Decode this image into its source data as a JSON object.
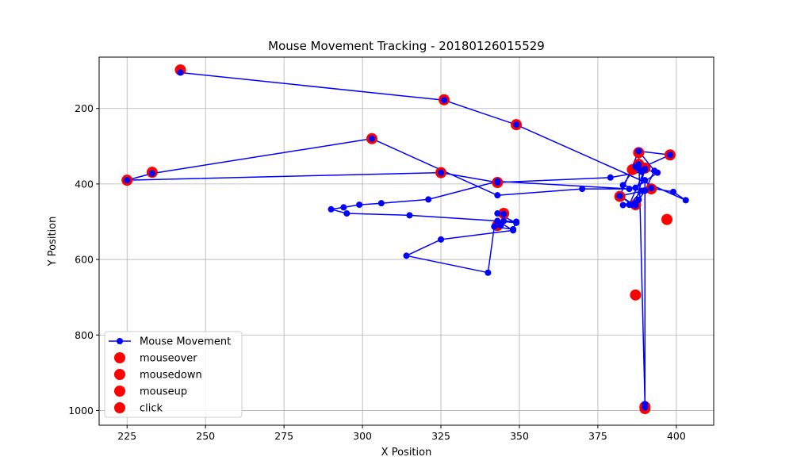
{
  "chart_data": {
    "type": "scatter",
    "title": "Mouse Movement Tracking - 20180126015529",
    "xlabel": "X Position",
    "ylabel": "Y Position",
    "xlim": [
      216.1,
      411.9
    ],
    "ylim": [
      1039,
      64
    ],
    "y_inverted": true,
    "grid": true,
    "x_ticks": [
      225,
      250,
      275,
      300,
      325,
      350,
      375,
      400
    ],
    "y_ticks": [
      200,
      400,
      600,
      800,
      1000
    ],
    "legend_position": "lower-left",
    "colors": {
      "line": "#0000ff",
      "events": "#ff0000",
      "grid": "#b0b0b0"
    },
    "legend": [
      {
        "label": "Mouse Movement",
        "kind": "line"
      },
      {
        "label": "mouseover",
        "kind": "event"
      },
      {
        "label": "mousedown",
        "kind": "event"
      },
      {
        "label": "mouseup",
        "kind": "event"
      },
      {
        "label": "click",
        "kind": "event"
      }
    ],
    "series": [
      {
        "name": "Mouse Movement",
        "x": [
          242,
          326,
          349,
          403,
          399,
          392,
          390,
          382,
          386,
          387,
          390,
          388,
          387,
          383,
          389,
          385,
          390,
          394,
          387,
          390,
          390,
          390,
          388,
          382,
          387,
          383,
          388,
          390,
          393,
          388,
          398,
          388,
          389,
          379,
          343,
          325,
          225,
          233,
          303,
          343,
          370,
          385,
          343,
          321,
          306,
          299,
          294,
          290,
          295,
          315,
          343,
          342,
          344,
          345,
          349,
          348,
          342,
          340,
          314,
          325,
          348,
          343,
          349,
          343,
          345
        ],
        "y": [
          105,
          178,
          243,
          443,
          421,
          411,
          417,
          432,
          455,
          450,
          360,
          348,
          354,
          403,
          418,
          455,
          362,
          370,
          410,
          390,
          992,
          983,
          313,
          432,
          457,
          456,
          442,
          418,
          365,
          313,
          323,
          360,
          368,
          383,
          396,
          370,
          390,
          372,
          280,
          430,
          413,
          413,
          393,
          441,
          451,
          455,
          462,
          467,
          478,
          483,
          498,
          513,
          510,
          498,
          500,
          520,
          513,
          635,
          590,
          547,
          523,
          498,
          503,
          478,
          480
        ]
      }
    ],
    "event_markers": {
      "x": [
        242,
        326,
        349,
        398,
        388,
        388,
        390,
        386,
        392,
        382,
        387,
        397,
        343,
        345,
        343,
        325,
        225,
        233,
        303,
        387,
        390,
        390
      ],
      "y": [
        98,
        177,
        243,
        323,
        317,
        348,
        358,
        362,
        413,
        433,
        455,
        494,
        396,
        478,
        510,
        370,
        390,
        369,
        280,
        694,
        995,
        990
      ]
    }
  }
}
